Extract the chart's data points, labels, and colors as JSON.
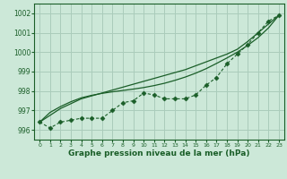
{
  "title": "Graphe pression niveau de la mer (hPa)",
  "bg_color": "#cce8d8",
  "grid_color": "#aaccbb",
  "line_color": "#1a5e28",
  "xlim": [
    -0.5,
    23.5
  ],
  "ylim": [
    995.5,
    1002.5
  ],
  "yticks": [
    996,
    997,
    998,
    999,
    1000,
    1001,
    1002
  ],
  "xticks": [
    0,
    1,
    2,
    3,
    4,
    5,
    6,
    7,
    8,
    9,
    10,
    11,
    12,
    13,
    14,
    15,
    16,
    17,
    18,
    19,
    20,
    21,
    22,
    23
  ],
  "hourly": [
    996.4,
    996.1,
    996.4,
    996.5,
    996.6,
    996.6,
    996.6,
    997.0,
    997.4,
    997.5,
    997.9,
    997.8,
    997.6,
    997.6,
    997.6,
    997.8,
    998.3,
    998.7,
    999.4,
    999.9,
    1000.4,
    1001.0,
    1001.6,
    1001.9
  ],
  "line1": [
    996.4,
    996.75,
    997.1,
    997.35,
    997.6,
    997.75,
    997.9,
    998.05,
    998.2,
    998.35,
    998.5,
    998.65,
    998.8,
    998.95,
    999.1,
    999.3,
    999.5,
    999.7,
    999.9,
    1000.15,
    1000.55,
    1001.0,
    1001.45,
    1001.9
  ],
  "line2": [
    996.4,
    996.9,
    997.2,
    997.45,
    997.65,
    997.78,
    997.88,
    997.96,
    998.03,
    998.1,
    998.18,
    998.28,
    998.4,
    998.55,
    998.72,
    998.92,
    999.15,
    999.42,
    999.7,
    1000.0,
    1000.35,
    1000.75,
    1001.25,
    1001.9
  ]
}
